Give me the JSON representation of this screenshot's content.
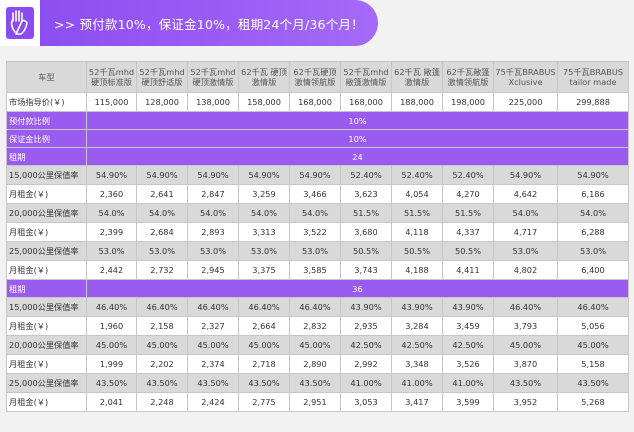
{
  "banner": {
    "title": ">> 预付款10%，保证金10%，租期24个月/36个月！",
    "icon": "hand-icon"
  },
  "colors": {
    "accent": "#9a5cf0",
    "row_gray": "#d9d9d9",
    "row_white": "#ffffff"
  },
  "header": [
    "车型",
    "52千瓦mhd 硬顶标准版",
    "52千瓦mhd 硬顶舒适版",
    "52千瓦mhd 硬顶激情版",
    "62千瓦 硬顶激情版",
    "62千瓦硬顶 激情领航版",
    "52千瓦mhd 敞篷激情版",
    "62千瓦 敞篷激情版",
    "62千瓦敞篷 激情领航版",
    "75千瓦BRABUS Xclusive",
    "75千瓦BRABUS tailor made"
  ],
  "msrp": {
    "label": "市场指导价(￥)",
    "values": [
      "115,000",
      "128,000",
      "138,000",
      "158,000",
      "168,000",
      "168,000",
      "188,000",
      "198,000",
      "225,000",
      "299,888"
    ]
  },
  "down_payment": {
    "label": "预付款比例",
    "value": "10%"
  },
  "deposit": {
    "label": "保证金比例",
    "value": "10%"
  },
  "term24": {
    "label": "租期",
    "value": "24",
    "rows": [
      {
        "label": "15,000公里保值率",
        "values": [
          "54.90%",
          "54.90%",
          "54.90%",
          "54.90%",
          "54.90%",
          "52.40%",
          "52.40%",
          "52.40%",
          "54.90%",
          "54.90%"
        ]
      },
      {
        "label": "月租金(￥)",
        "values": [
          "2,360",
          "2,641",
          "2,847",
          "3,259",
          "3,466",
          "3,623",
          "4,054",
          "4,270",
          "4,642",
          "6,186"
        ]
      },
      {
        "label": "20,000公里保值率",
        "values": [
          "54.0%",
          "54.0%",
          "54.0%",
          "54.0%",
          "54.0%",
          "51.5%",
          "51.5%",
          "51.5%",
          "54.0%",
          "54.0%"
        ]
      },
      {
        "label": "月租金(￥)",
        "values": [
          "2,399",
          "2,684",
          "2,893",
          "3,313",
          "3,522",
          "3,680",
          "4,118",
          "4,337",
          "4,717",
          "6,288"
        ]
      },
      {
        "label": "25,000公里保值率",
        "values": [
          "53.0%",
          "53.0%",
          "53.0%",
          "53.0%",
          "53.0%",
          "50.5%",
          "50.5%",
          "50.5%",
          "53.0%",
          "53.0%"
        ]
      },
      {
        "label": "月租金(￥)",
        "values": [
          "2,442",
          "2,732",
          "2,945",
          "3,375",
          "3,585",
          "3,743",
          "4,188",
          "4,411",
          "4,802",
          "6,400"
        ]
      }
    ]
  },
  "term36": {
    "label": "租期",
    "value": "36",
    "rows": [
      {
        "label": "15,000公里保值率",
        "values": [
          "46.40%",
          "46.40%",
          "46.40%",
          "46.40%",
          "46.40%",
          "43.90%",
          "43.90%",
          "43.90%",
          "46.40%",
          "46.40%"
        ]
      },
      {
        "label": "月租金(￥)",
        "values": [
          "1,960",
          "2,158",
          "2,327",
          "2,664",
          "2,832",
          "2,935",
          "3,284",
          "3,459",
          "3,793",
          "5,056"
        ]
      },
      {
        "label": "20,000公里保值率",
        "values": [
          "45.00%",
          "45.00%",
          "45.00%",
          "45.00%",
          "45.00%",
          "42.50%",
          "42.50%",
          "42.50%",
          "45.00%",
          "45.00%"
        ]
      },
      {
        "label": "月租金(￥)",
        "values": [
          "1,999",
          "2,202",
          "2,374",
          "2,718",
          "2,890",
          "2,992",
          "3,348",
          "3,526",
          "3,870",
          "5,158"
        ]
      },
      {
        "label": "25,000公里保值率",
        "values": [
          "43.50%",
          "43.50%",
          "43.50%",
          "43.50%",
          "43.50%",
          "41.00%",
          "41.00%",
          "41.00%",
          "43.50%",
          "43.50%"
        ]
      },
      {
        "label": "月租金(￥)",
        "values": [
          "2,041",
          "2,248",
          "2,424",
          "2,775",
          "2,951",
          "3,053",
          "3,417",
          "3,599",
          "3,952",
          "5,268"
        ]
      }
    ]
  }
}
